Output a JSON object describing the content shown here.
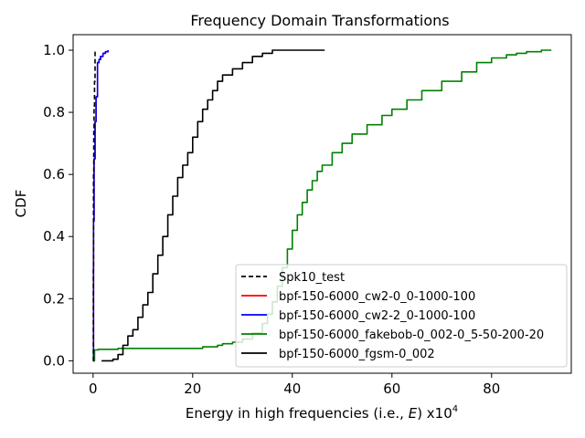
{
  "chart_data": {
    "type": "line",
    "title": "Frequency Domain Transformations",
    "xlabel_prefix": "Energy in high frequencies (i.e., ",
    "xlabel_var": "E",
    "xlabel_suffix": ") x10",
    "xlabel_sup": "4",
    "ylabel": "CDF",
    "xlim": [
      -4,
      96
    ],
    "ylim": [
      -0.04,
      1.05
    ],
    "xticks": [
      0,
      20,
      40,
      60,
      80
    ],
    "yticks": [
      0.0,
      0.2,
      0.4,
      0.6,
      0.8,
      1.0
    ],
    "xtick_labels": [
      "0",
      "20",
      "40",
      "60",
      "80"
    ],
    "ytick_labels": [
      "0.0",
      "0.2",
      "0.4",
      "0.6",
      "0.8",
      "1.0"
    ],
    "grid": false,
    "legend_position": "lower-right",
    "series": [
      {
        "name": "Spk10_test",
        "color": "#000000",
        "dashed": true,
        "x": [
          0,
          0.05,
          0.1,
          0.15,
          0.2,
          0.3,
          0.4
        ],
        "y": [
          0,
          0.3,
          0.6,
          0.75,
          0.82,
          0.9,
          1.0
        ]
      },
      {
        "name": "bpf-150-6000_cw2-0_0-1000-100",
        "color": "#ff0000",
        "dashed": false,
        "x": [
          0,
          0.1,
          0.2,
          0.4,
          0.6,
          0.9,
          1.2,
          1.5,
          2.0,
          2.5,
          3.0
        ],
        "y": [
          0,
          0.45,
          0.65,
          0.77,
          0.85,
          0.96,
          0.97,
          0.98,
          0.99,
          0.995,
          1.0
        ]
      },
      {
        "name": "bpf-150-6000_cw2-2_0-1000-100",
        "color": "#0000ff",
        "dashed": false,
        "x": [
          0,
          0.1,
          0.2,
          0.4,
          0.6,
          0.9,
          1.2,
          1.5,
          2.0,
          2.5,
          3.0
        ],
        "y": [
          0,
          0.45,
          0.65,
          0.77,
          0.85,
          0.96,
          0.97,
          0.98,
          0.99,
          0.995,
          1.0
        ]
      },
      {
        "name": "bpf-150-6000_fakebob-0_002-0_5-50-200-20",
        "color": "#008000",
        "dashed": false,
        "x": [
          0,
          0.3,
          1,
          5,
          10,
          20,
          22,
          25,
          26,
          28,
          30,
          32,
          34,
          35,
          36,
          37,
          38,
          39,
          40,
          41,
          42,
          43,
          44,
          45,
          46,
          48,
          50,
          52,
          55,
          58,
          60,
          63,
          66,
          70,
          74,
          77,
          80,
          83,
          85,
          87,
          90,
          92
        ],
        "y": [
          0,
          0.035,
          0.037,
          0.04,
          0.04,
          0.04,
          0.045,
          0.05,
          0.055,
          0.06,
          0.07,
          0.09,
          0.12,
          0.15,
          0.19,
          0.24,
          0.3,
          0.36,
          0.42,
          0.47,
          0.51,
          0.55,
          0.58,
          0.61,
          0.63,
          0.67,
          0.7,
          0.73,
          0.76,
          0.79,
          0.81,
          0.84,
          0.87,
          0.9,
          0.93,
          0.96,
          0.975,
          0.985,
          0.99,
          0.995,
          1.0,
          1.0
        ]
      },
      {
        "name": "bpf-150-6000_fgsm-0_002",
        "color": "#000000",
        "dashed": false,
        "x": [
          1.7,
          3,
          4,
          5,
          6,
          7,
          8,
          9,
          10,
          11,
          12,
          13,
          14,
          15,
          16,
          17,
          18,
          19,
          20,
          21,
          22,
          23,
          24,
          25,
          26,
          28,
          30,
          32,
          34,
          36,
          38,
          40,
          42,
          44,
          46.5
        ],
        "y": [
          0,
          0.0,
          0.005,
          0.02,
          0.05,
          0.08,
          0.1,
          0.14,
          0.18,
          0.22,
          0.28,
          0.34,
          0.4,
          0.47,
          0.53,
          0.59,
          0.63,
          0.67,
          0.72,
          0.77,
          0.81,
          0.84,
          0.87,
          0.9,
          0.92,
          0.94,
          0.96,
          0.98,
          0.99,
          1.0,
          1.0,
          1.0,
          1.0,
          1.0,
          1.0
        ]
      }
    ]
  }
}
